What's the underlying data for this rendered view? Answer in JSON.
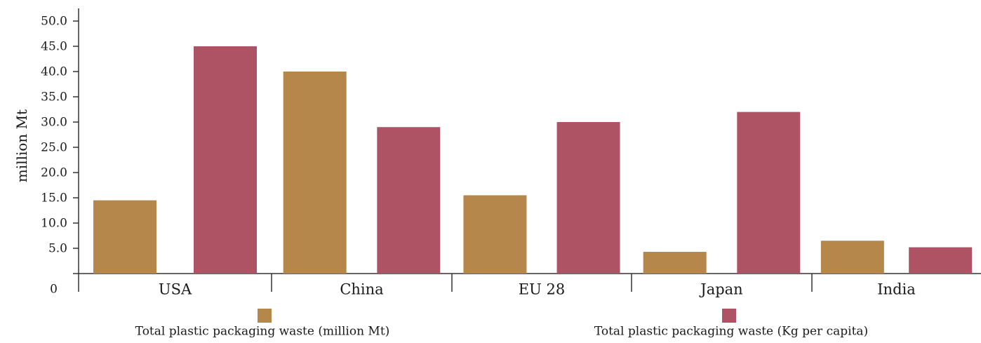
{
  "chart_data": {
    "type": "bar",
    "title": "",
    "xlabel": "",
    "ylabel": "million Mt",
    "categories": [
      "USA",
      "China",
      "EU 28",
      "Japan",
      "India"
    ],
    "series": [
      {
        "name": "Total plastic packaging waste (million Mt)",
        "values": [
          14.5,
          40.0,
          15.5,
          4.3,
          6.5
        ]
      },
      {
        "name": "Total plastic packaging waste (Kg per capita)",
        "values": [
          45.0,
          29.0,
          30.0,
          32.0,
          5.2
        ]
      }
    ],
    "yticks": [
      "0",
      "5.0",
      "10.0",
      "15.0",
      "20.0",
      "25.0",
      "30.0",
      "35.0",
      "40.0",
      "45.0",
      "50.0"
    ],
    "ylim": [
      0,
      52
    ],
    "grid": false,
    "legend_position": "bottom",
    "colors": {
      "series_1": "#b5874a",
      "series_2": "#ae5364",
      "axis": "#333333"
    }
  }
}
